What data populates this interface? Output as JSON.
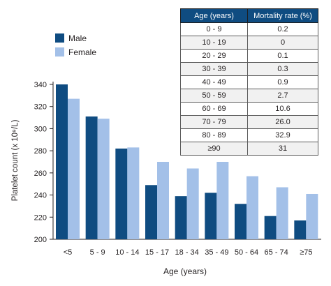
{
  "chart_data": {
    "type": "bar",
    "xlabel": "Age (years)",
    "ylabel": "Platelet count (x 10⁹/L)",
    "categories": [
      "<5",
      "5 - 9",
      "10 - 14",
      "15 - 17",
      "18 - 34",
      "35 - 49",
      "50 - 64",
      "65 - 74",
      "≥75"
    ],
    "ylim": [
      200,
      340
    ],
    "yticks": [
      200,
      220,
      240,
      260,
      280,
      300,
      320,
      340
    ],
    "grid": false,
    "legend_position": "top-left",
    "series": [
      {
        "name": "Male",
        "color": "#0f4c81",
        "values": [
          340,
          311,
          282,
          249,
          239,
          242,
          232,
          221,
          217
        ]
      },
      {
        "name": "Female",
        "color": "#a3c0e8",
        "values": [
          327,
          309,
          283,
          270,
          264,
          270,
          257,
          247,
          241
        ]
      }
    ]
  },
  "table": {
    "headers": [
      "Age (years)",
      "Mortality rate (%)"
    ],
    "rows": [
      [
        "0 - 9",
        "0.2"
      ],
      [
        "10 - 19",
        "0"
      ],
      [
        "20 - 29",
        "0.1"
      ],
      [
        "30 - 39",
        "0.3"
      ],
      [
        "40 - 49",
        "0.9"
      ],
      [
        "50 - 59",
        "2.7"
      ],
      [
        "60 - 69",
        "10.6"
      ],
      [
        "70 - 79",
        "26.0"
      ],
      [
        "80 - 89",
        "32.9"
      ],
      [
        "≥90",
        "31"
      ]
    ]
  }
}
